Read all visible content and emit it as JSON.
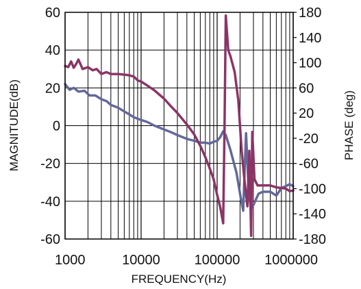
{
  "chart_data": {
    "type": "line",
    "xlabel": "FREQUENCY(Hz)",
    "ylabel_left": "MAGNITUDE(dB)",
    "ylabel_right": "PHASE (deg)",
    "x_scale": "log",
    "xlim": [
      1000,
      1000000
    ],
    "ylim_left": [
      -60,
      60
    ],
    "ylim_right": [
      -180,
      180
    ],
    "x_ticks": [
      {
        "value": 1000,
        "label": "1000"
      },
      {
        "value": 10000,
        "label": "10000"
      },
      {
        "value": 100000,
        "label": "100000"
      },
      {
        "value": 1000000,
        "label": "1000000"
      }
    ],
    "y_ticks_left": [
      "60",
      "40",
      "20",
      "0",
      "-20",
      "-40",
      "-60"
    ],
    "y_ticks_right": [
      "180",
      "140",
      "100",
      "60",
      "20",
      "-20",
      "-60",
      "-100",
      "-140",
      "-180"
    ],
    "grid": true,
    "colors": {
      "magnitude": "#62689a",
      "phase": "#8b3466",
      "grid": "#000000"
    },
    "series": [
      {
        "axis": "left",
        "color_key": "magnitude",
        "points": [
          [
            1000,
            22
          ],
          [
            1150,
            19
          ],
          [
            1300,
            20
          ],
          [
            1500,
            18
          ],
          [
            1800,
            18.5
          ],
          [
            2100,
            16
          ],
          [
            2500,
            16
          ],
          [
            3000,
            14
          ],
          [
            3500,
            13
          ],
          [
            4000,
            11
          ],
          [
            5000,
            9.5
          ],
          [
            6000,
            7.5
          ],
          [
            7000,
            6
          ],
          [
            8000,
            4.5
          ],
          [
            10000,
            3
          ],
          [
            12000,
            2
          ],
          [
            15000,
            0
          ],
          [
            20000,
            -2
          ],
          [
            25000,
            -3.5
          ],
          [
            30000,
            -5
          ],
          [
            40000,
            -7
          ],
          [
            50000,
            -8
          ],
          [
            60000,
            -9
          ],
          [
            70000,
            -9
          ],
          [
            80000,
            -9.5
          ],
          [
            90000,
            -8.5
          ],
          [
            100000,
            -8
          ],
          [
            110000,
            -6
          ],
          [
            120000,
            -3
          ],
          [
            130000,
            -5
          ],
          [
            150000,
            -13
          ],
          [
            180000,
            -25
          ],
          [
            200000,
            -36
          ],
          [
            220000,
            -45
          ],
          [
            240000,
            -4
          ],
          [
            260000,
            -35
          ],
          [
            280000,
            -44
          ],
          [
            300000,
            -42
          ],
          [
            350000,
            -36
          ],
          [
            400000,
            -35
          ],
          [
            500000,
            -35
          ],
          [
            600000,
            -37
          ],
          [
            700000,
            -33
          ],
          [
            800000,
            -32
          ],
          [
            900000,
            -31
          ],
          [
            1000000,
            -32
          ]
        ]
      },
      {
        "axis": "right",
        "color_key": "phase",
        "points": [
          [
            1000,
            95
          ],
          [
            1100,
            93
          ],
          [
            1200,
            102
          ],
          [
            1300,
            92
          ],
          [
            1400,
            98
          ],
          [
            1500,
            105
          ],
          [
            1700,
            90
          ],
          [
            2000,
            93
          ],
          [
            2300,
            88
          ],
          [
            2600,
            90
          ],
          [
            3000,
            82
          ],
          [
            3500,
            85
          ],
          [
            4000,
            82
          ],
          [
            5000,
            82
          ],
          [
            6000,
            81
          ],
          [
            7000,
            80
          ],
          [
            8000,
            78
          ],
          [
            9000,
            72
          ],
          [
            10000,
            70
          ],
          [
            12000,
            64
          ],
          [
            15000,
            56
          ],
          [
            20000,
            43
          ],
          [
            25000,
            30
          ],
          [
            30000,
            20
          ],
          [
            40000,
            2
          ],
          [
            50000,
            -14
          ],
          [
            60000,
            -32
          ],
          [
            70000,
            -50
          ],
          [
            80000,
            -68
          ],
          [
            90000,
            -85
          ],
          [
            100000,
            -110
          ],
          [
            110000,
            -130
          ],
          [
            120000,
            -155
          ],
          [
            125000,
            0
          ],
          [
            130000,
            175
          ],
          [
            140000,
            120
          ],
          [
            150000,
            110
          ],
          [
            170000,
            85
          ],
          [
            190000,
            40
          ],
          [
            210000,
            -40
          ],
          [
            230000,
            -90
          ],
          [
            250000,
            -128
          ],
          [
            265000,
            -40
          ],
          [
            280000,
            -175
          ],
          [
            290000,
            -10
          ],
          [
            310000,
            -85
          ],
          [
            340000,
            -95
          ],
          [
            400000,
            -95
          ],
          [
            500000,
            -95
          ],
          [
            600000,
            -98
          ],
          [
            700000,
            -99
          ],
          [
            800000,
            -100
          ],
          [
            900000,
            -104
          ],
          [
            1000000,
            -103
          ]
        ]
      }
    ]
  }
}
